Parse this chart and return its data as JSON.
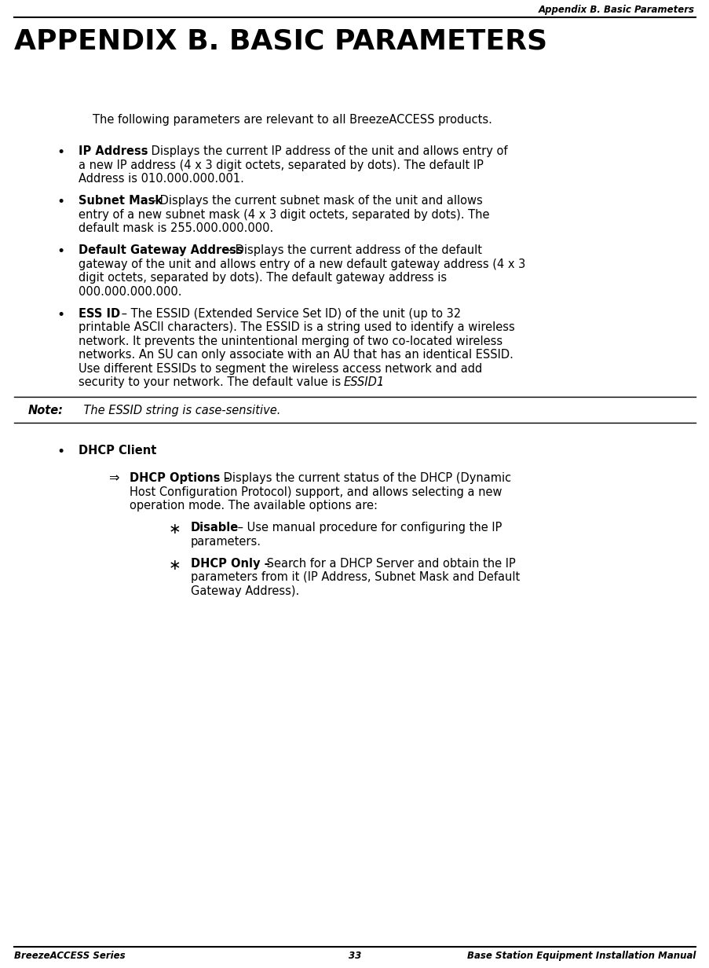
{
  "bg_color": "#ffffff",
  "header_text": "Appendix B. Basic Parameters",
  "header_font_size": 8.5,
  "title_text": "APPENDIX B. BASIC PARAMETERS",
  "title_font_size": 26,
  "footer_left": "BreezeACCESS Series",
  "footer_center": "33",
  "footer_right": "Base Station Equipment Installation Manual",
  "footer_font_size": 8.5,
  "body_font_size": 10.5,
  "font_family": "DejaVu Sans"
}
